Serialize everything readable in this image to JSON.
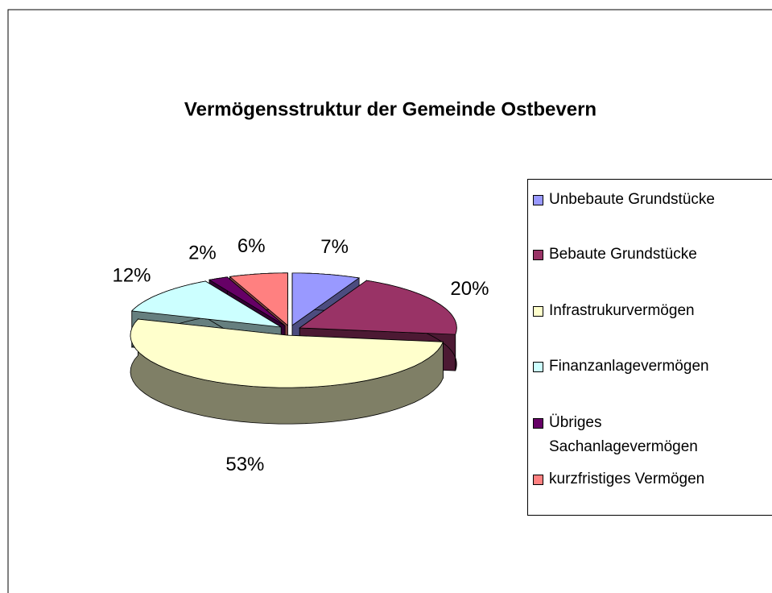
{
  "chart_data": {
    "type": "pie3d",
    "title": "Vermögensstruktur der Gemeinde Ostbevern",
    "categories": [
      "Unbebaute Grundstücke",
      "Bebaute Grundstücke",
      "Infrastrukurvermögen",
      "Finanzanlagevermögen",
      "Übriges Sachanlagevermögen",
      "kurzfristiges Vermögen"
    ],
    "values": [
      7,
      20,
      53,
      12,
      2,
      6
    ],
    "value_labels": [
      "7%",
      "20%",
      "53%",
      "12%",
      "2%",
      "6%"
    ],
    "colors": [
      "#9999ff",
      "#993366",
      "#ffffcc",
      "#ccffff",
      "#660066",
      "#ff8080"
    ],
    "legend": "right"
  }
}
